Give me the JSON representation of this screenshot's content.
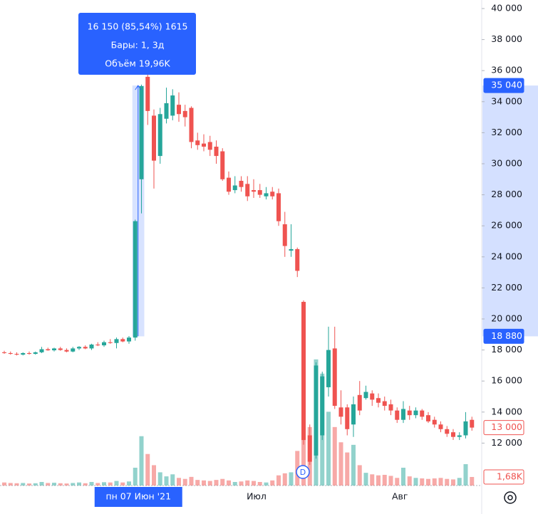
{
  "chart_data": {
    "type": "candlestick",
    "categories": [
      null,
      null,
      null,
      null,
      null,
      null,
      null,
      null,
      null,
      null,
      null,
      null,
      null,
      null,
      null,
      null,
      null,
      null,
      null,
      null,
      null,
      "пн 07 Июн '21",
      null,
      null,
      null,
      null,
      null,
      null,
      null,
      null,
      null,
      null,
      null,
      null,
      null,
      null,
      null,
      null,
      null,
      null,
      "Июл",
      null,
      null,
      null,
      null,
      null,
      null,
      null,
      null,
      null,
      null,
      null,
      null,
      null,
      null,
      null,
      null,
      null,
      null,
      null,
      null,
      null,
      null,
      "Авг",
      null,
      null,
      null,
      null,
      null,
      null,
      null,
      null,
      null,
      null,
      null,
      null
    ],
    "highlight_index": 21,
    "open": [
      17850,
      17800,
      17750,
      17700,
      17800,
      17750,
      17850,
      18050,
      17980,
      18100,
      18000,
      17900,
      18100,
      18200,
      18100,
      18350,
      18300,
      18500,
      18450,
      18700,
      18550,
      18800,
      29000,
      35600,
      33100,
      30500,
      32900,
      33100,
      33800,
      33400,
      33600,
      31500,
      31300,
      31400,
      31100,
      30800,
      29100,
      28300,
      28900,
      28700,
      28300,
      28300,
      27900,
      28200,
      28100,
      26100,
      24400,
      24500,
      21100,
      12500,
      11200,
      12500,
      15600,
      18100,
      14300,
      14300,
      13200,
      15100,
      14900,
      15200,
      14900,
      14700,
      14500,
      14100,
      13500,
      14100,
      13800,
      14100,
      13800,
      13500,
      13200,
      12900,
      12700,
      12400,
      12500,
      13500
    ],
    "high": [
      17950,
      17900,
      17850,
      17850,
      17900,
      17900,
      18200,
      18150,
      18150,
      18200,
      18100,
      18200,
      18250,
      18300,
      18400,
      18500,
      18600,
      18700,
      18800,
      18800,
      18900,
      26400,
      35100,
      36000,
      33500,
      33600,
      34900,
      34800,
      34600,
      33800,
      33700,
      32000,
      31900,
      31800,
      31500,
      31000,
      29500,
      29200,
      29200,
      29200,
      29000,
      28700,
      28500,
      28500,
      28400,
      26900,
      26100,
      24600,
      21200,
      13200,
      17200,
      16600,
      19500,
      19500,
      15400,
      14500,
      15000,
      16000,
      15700,
      15400,
      15200,
      15000,
      14800,
      14300,
      14700,
      14400,
      14300,
      14200,
      14000,
      13700,
      13400,
      13100,
      12900,
      12700,
      14000,
      13700
    ],
    "low": [
      17750,
      17700,
      17650,
      17650,
      17700,
      17700,
      17800,
      17950,
      17900,
      17950,
      17850,
      17850,
      18000,
      18050,
      18000,
      18250,
      18200,
      18400,
      18100,
      18500,
      18400,
      18600,
      26800,
      32500,
      28400,
      30000,
      32600,
      32800,
      32700,
      32400,
      31000,
      30900,
      30800,
      30500,
      30000,
      28900,
      28000,
      28100,
      28200,
      27600,
      27800,
      27800,
      27700,
      27700,
      26000,
      24000,
      24000,
      22700,
      11900,
      10600,
      11000,
      12200,
      15000,
      14200,
      13200,
      12500,
      12400,
      13800,
      14800,
      14400,
      14300,
      14100,
      13800,
      13300,
      13300,
      13500,
      13600,
      13500,
      13300,
      13000,
      12700,
      12400,
      12200,
      12200,
      12300,
      12800
    ],
    "close": [
      17800,
      17750,
      17700,
      17800,
      17750,
      17850,
      18050,
      17980,
      18100,
      18000,
      17900,
      18100,
      18200,
      18100,
      18350,
      18300,
      18500,
      18450,
      18700,
      18550,
      18800,
      26300,
      35000,
      33400,
      30200,
      33200,
      33900,
      34400,
      33200,
      33000,
      31400,
      31200,
      31100,
      30900,
      30500,
      29000,
      28200,
      28600,
      28500,
      27900,
      28200,
      28000,
      28100,
      27900,
      26300,
      24700,
      24500,
      23100,
      12200,
      10800,
      17000,
      16300,
      18000,
      14400,
      13700,
      12900,
      14500,
      14100,
      15300,
      14800,
      14600,
      14400,
      14100,
      13500,
      14200,
      13800,
      14100,
      13700,
      13400,
      13200,
      12900,
      12600,
      12400,
      12500,
      13400,
      13000
    ],
    "volume": [
      600,
      500,
      450,
      500,
      400,
      450,
      700,
      500,
      550,
      450,
      400,
      500,
      600,
      450,
      700,
      500,
      650,
      600,
      900,
      600,
      800,
      3500,
      9700,
      6200,
      4000,
      2600,
      1800,
      2200,
      1500,
      1300,
      1700,
      1100,
      1000,
      900,
      1100,
      1300,
      1000,
      700,
      800,
      1000,
      900,
      700,
      600,
      1000,
      2000,
      2400,
      2600,
      6800,
      9800,
      11500,
      24800,
      22000,
      14500,
      11500,
      8500,
      6500,
      8000,
      4000,
      2500,
      2200,
      2000,
      2100,
      1900,
      1500,
      3500,
      1800,
      1500,
      1400,
      1300,
      1400,
      1500,
      1300,
      1200,
      1500,
      4200,
      1680
    ],
    "up_color": "#26a69a",
    "down_color": "#ef5350",
    "ylim": [
      9267,
      40550
    ],
    "yticks": [
      {
        "value": 12000,
        "label": "12 000"
      },
      {
        "value": 14000,
        "label": "14 000"
      },
      {
        "value": 16000,
        "label": "16 000"
      },
      {
        "value": 18000,
        "label": "18 000"
      },
      {
        "value": 20000,
        "label": "20 000"
      },
      {
        "value": 22000,
        "label": "22 000"
      },
      {
        "value": 24000,
        "label": "24 000"
      },
      {
        "value": 26000,
        "label": "26 000"
      },
      {
        "value": 28000,
        "label": "28 000"
      },
      {
        "value": 30000,
        "label": "30 000"
      },
      {
        "value": 32000,
        "label": "32 000"
      },
      {
        "value": 34000,
        "label": "34 000"
      },
      {
        "value": 36000,
        "label": "36 000"
      },
      {
        "value": 38000,
        "label": "38 000"
      },
      {
        "value": 40000,
        "label": "40 000"
      }
    ],
    "volume_ylim": [
      0,
      25000
    ],
    "price_markers": [
      {
        "value": 35040,
        "label": "35 040",
        "color": "#2962ff",
        "style": "filled",
        "axis": "price"
      },
      {
        "value": 18880,
        "label": "18 880",
        "color": "#2962ff",
        "style": "filled",
        "axis": "price"
      },
      {
        "value": 13000,
        "label": "13 000",
        "color": "#ef5350",
        "style": "outline",
        "axis": "price"
      },
      {
        "value": 1680,
        "label": "1,68K",
        "color": "#ef5350",
        "style": "outline",
        "axis": "volume"
      }
    ],
    "tooltip": [
      "16 150 (85,54%) 1615",
      "Бары: 1, 3д",
      "Объём 19,96K"
    ],
    "event_marker": "D"
  }
}
